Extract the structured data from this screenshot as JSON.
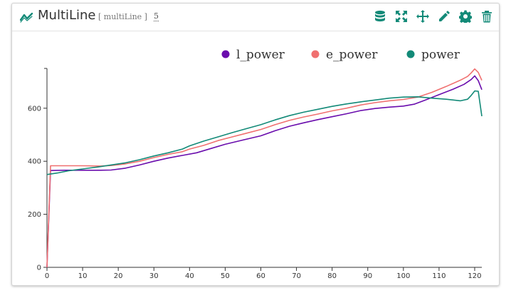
{
  "widget": {
    "title": "MultiLine",
    "subtype": "[ multiLine ]",
    "count": "5"
  },
  "toolbar": {
    "icons": [
      "database-icon",
      "expand-icon",
      "move-icon",
      "pencil-icon",
      "gear-icon",
      "trash-icon"
    ],
    "accent": "#138a78"
  },
  "chart_data": {
    "type": "line",
    "xlim": [
      0,
      122
    ],
    "ylim": [
      0,
      750
    ],
    "xticks": [
      "0",
      "10",
      "20",
      "30",
      "40",
      "50",
      "60",
      "70",
      "80",
      "90",
      "100",
      "110",
      "120"
    ],
    "yticks": [
      "0",
      "200",
      "400",
      "600"
    ],
    "legend_position": "top-right",
    "series": [
      {
        "name": "l_power",
        "color": "#6a0dad",
        "points": [
          [
            0,
            0
          ],
          [
            1,
            365
          ],
          [
            5,
            366
          ],
          [
            10,
            366
          ],
          [
            15,
            366
          ],
          [
            18,
            367
          ],
          [
            22,
            374
          ],
          [
            26,
            386
          ],
          [
            30,
            400
          ],
          [
            34,
            412
          ],
          [
            38,
            422
          ],
          [
            42,
            432
          ],
          [
            46,
            448
          ],
          [
            50,
            464
          ],
          [
            55,
            480
          ],
          [
            60,
            496
          ],
          [
            64,
            515
          ],
          [
            68,
            532
          ],
          [
            72,
            545
          ],
          [
            76,
            557
          ],
          [
            80,
            568
          ],
          [
            84,
            579
          ],
          [
            88,
            591
          ],
          [
            92,
            599
          ],
          [
            96,
            604
          ],
          [
            100,
            608
          ],
          [
            103,
            615
          ],
          [
            106,
            630
          ],
          [
            110,
            651
          ],
          [
            114,
            672
          ],
          [
            117,
            690
          ],
          [
            119,
            708
          ],
          [
            120,
            722
          ],
          [
            121,
            704
          ],
          [
            122,
            670
          ]
        ]
      },
      {
        "name": "e_power",
        "color": "#f07070",
        "points": [
          [
            0,
            0
          ],
          [
            1,
            383
          ],
          [
            5,
            383
          ],
          [
            10,
            383
          ],
          [
            15,
            382
          ],
          [
            18,
            384
          ],
          [
            22,
            390
          ],
          [
            26,
            400
          ],
          [
            30,
            414
          ],
          [
            34,
            426
          ],
          [
            38,
            436
          ],
          [
            40,
            446
          ],
          [
            44,
            460
          ],
          [
            48,
            478
          ],
          [
            52,
            492
          ],
          [
            56,
            506
          ],
          [
            60,
            520
          ],
          [
            64,
            538
          ],
          [
            68,
            554
          ],
          [
            72,
            567
          ],
          [
            76,
            578
          ],
          [
            80,
            590
          ],
          [
            84,
            600
          ],
          [
            88,
            612
          ],
          [
            92,
            621
          ],
          [
            96,
            628
          ],
          [
            100,
            633
          ],
          [
            104,
            642
          ],
          [
            108,
            660
          ],
          [
            112,
            682
          ],
          [
            116,
            706
          ],
          [
            118,
            720
          ],
          [
            119,
            733
          ],
          [
            120,
            748
          ],
          [
            121,
            735
          ],
          [
            122,
            705
          ]
        ]
      },
      {
        "name": "power",
        "color": "#138a78",
        "points": [
          [
            0,
            350
          ],
          [
            3,
            356
          ],
          [
            6,
            364
          ],
          [
            10,
            371
          ],
          [
            14,
            378
          ],
          [
            18,
            386
          ],
          [
            22,
            394
          ],
          [
            26,
            406
          ],
          [
            30,
            420
          ],
          [
            34,
            432
          ],
          [
            38,
            446
          ],
          [
            40,
            458
          ],
          [
            44,
            476
          ],
          [
            48,
            492
          ],
          [
            52,
            508
          ],
          [
            56,
            523
          ],
          [
            60,
            538
          ],
          [
            64,
            556
          ],
          [
            68,
            572
          ],
          [
            72,
            585
          ],
          [
            76,
            596
          ],
          [
            80,
            607
          ],
          [
            84,
            616
          ],
          [
            88,
            624
          ],
          [
            92,
            631
          ],
          [
            96,
            638
          ],
          [
            100,
            642
          ],
          [
            104,
            643
          ],
          [
            108,
            638
          ],
          [
            112,
            634
          ],
          [
            116,
            628
          ],
          [
            118,
            634
          ],
          [
            119,
            648
          ],
          [
            120,
            665
          ],
          [
            121,
            664
          ],
          [
            122,
            570
          ]
        ]
      }
    ]
  }
}
